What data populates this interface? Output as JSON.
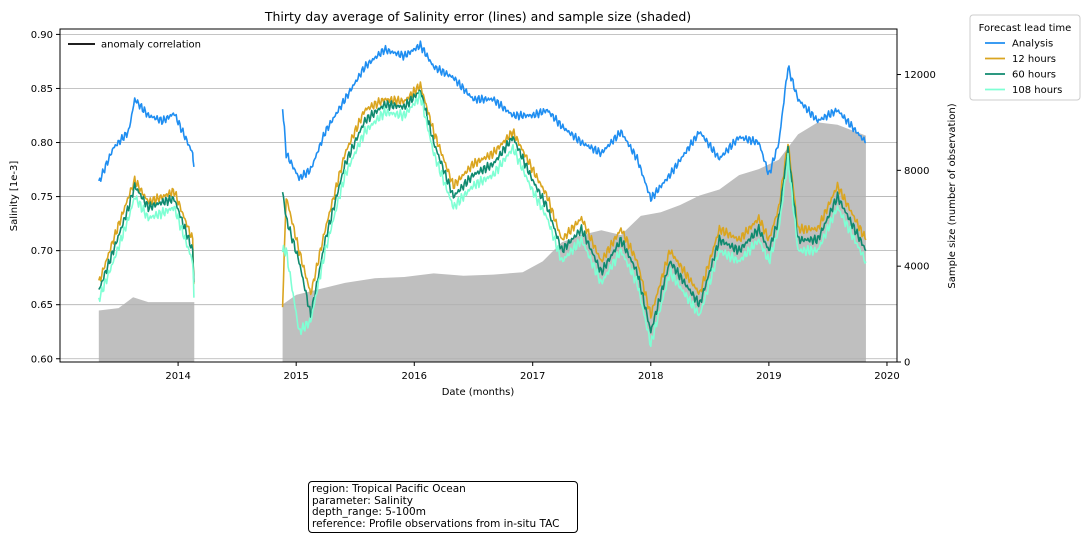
{
  "chart_data": {
    "type": "line",
    "title": "Thirty day average of Salinity error (lines) and sample size (shaded)",
    "xlabel": "Date (months)",
    "ylabel": "Salinity [1e-3]",
    "ylabel_right": "Sample size (number of observation)",
    "xlim": [
      "2013-01-01",
      "2020-02-01"
    ],
    "ylim": [
      0.597,
      0.905
    ],
    "ylim_right": [
      0,
      13900
    ],
    "x_ticks": [
      "2014",
      "2015",
      "2016",
      "2017",
      "2018",
      "2019",
      "2020"
    ],
    "y_ticks": [
      "0.60",
      "0.65",
      "0.70",
      "0.75",
      "0.80",
      "0.85",
      "0.90"
    ],
    "y_ticks_right": [
      "0",
      "4000",
      "8000",
      "12000"
    ],
    "grid": "horizontal",
    "legend_main": {
      "placement": "top-left",
      "entries": [
        "anomaly correlation"
      ]
    },
    "legend": {
      "title": "Forecast lead time",
      "placement": "outside-top-right",
      "entries": [
        "Analysis",
        "12 hours",
        "60 hours",
        "108 hours"
      ]
    },
    "sample_size": {
      "name": "sample size",
      "color": "#bfbfbf",
      "x": [
        "2013-05-01",
        "2013-07-01",
        "2013-08-15",
        "2013-10-01",
        "2013-12-01",
        "2014-02-20",
        "2014-11-20",
        "2015-01-01",
        "2015-03-01",
        "2015-06-01",
        "2015-09-01",
        "2015-12-01",
        "2016-03-01",
        "2016-06-01",
        "2016-09-01",
        "2016-12-01",
        "2017-02-01",
        "2017-04-01",
        "2017-06-01",
        "2017-08-01",
        "2017-10-01",
        "2017-12-01",
        "2018-02-01",
        "2018-04-01",
        "2018-06-01",
        "2018-08-01",
        "2018-10-01",
        "2018-12-01",
        "2019-02-01",
        "2019-04-01",
        "2019-06-01",
        "2019-08-01",
        "2019-10-28"
      ],
      "values": [
        2150,
        2250,
        2700,
        2500,
        2500,
        2500,
        2400,
        2800,
        3000,
        3300,
        3500,
        3550,
        3700,
        3600,
        3650,
        3750,
        4200,
        5000,
        5300,
        5500,
        5300,
        6100,
        6250,
        6550,
        6950,
        7200,
        7800,
        8050,
        8450,
        9500,
        10000,
        9900,
        9450
      ]
    },
    "series": [
      {
        "name": "Analysis",
        "color": "#1f8ef1",
        "x": [
          "2013-05-01",
          "2013-06-15",
          "2013-08-01",
          "2013-08-20",
          "2013-10-01",
          "2013-11-15",
          "2013-12-20",
          "2014-02-15",
          "2014-02-20",
          "2014-11-20",
          "2014-12-01",
          "2015-01-10",
          "2015-02-15",
          "2015-04-01",
          "2015-06-01",
          "2015-08-01",
          "2015-10-01",
          "2015-12-01",
          "2016-01-20",
          "2016-03-01",
          "2016-05-01",
          "2016-07-01",
          "2016-09-01",
          "2016-11-01",
          "2017-01-01",
          "2017-02-15",
          "2017-04-01",
          "2017-06-01",
          "2017-08-01",
          "2017-10-01",
          "2017-11-20",
          "2018-01-01",
          "2018-03-01",
          "2018-06-01",
          "2018-08-01",
          "2018-10-01",
          "2018-12-01",
          "2019-01-01",
          "2019-02-01",
          "2019-03-01",
          "2019-04-01",
          "2019-06-01",
          "2019-08-01",
          "2019-10-28"
        ],
        "values": [
          0.763,
          0.795,
          0.81,
          0.84,
          0.825,
          0.82,
          0.827,
          0.79,
          0.77,
          0.833,
          0.79,
          0.767,
          0.775,
          0.81,
          0.84,
          0.87,
          0.886,
          0.88,
          0.89,
          0.87,
          0.86,
          0.84,
          0.84,
          0.825,
          0.825,
          0.83,
          0.815,
          0.8,
          0.79,
          0.81,
          0.785,
          0.748,
          0.77,
          0.81,
          0.785,
          0.805,
          0.8,
          0.77,
          0.8,
          0.87,
          0.84,
          0.82,
          0.83,
          0.8
        ]
      },
      {
        "name": "12 hours",
        "color": "#daa520",
        "x": [
          "2013-05-01",
          "2013-06-15",
          "2013-08-01",
          "2013-08-20",
          "2013-10-01",
          "2013-11-15",
          "2013-12-20",
          "2014-02-15",
          "2014-02-20",
          "2014-11-20",
          "2014-12-01",
          "2015-01-10",
          "2015-02-15",
          "2015-04-01",
          "2015-06-01",
          "2015-08-01",
          "2015-10-01",
          "2015-12-01",
          "2016-01-20",
          "2016-03-01",
          "2016-05-01",
          "2016-07-01",
          "2016-09-01",
          "2016-11-01",
          "2017-01-01",
          "2017-02-15",
          "2017-04-01",
          "2017-06-01",
          "2017-08-01",
          "2017-10-01",
          "2017-11-20",
          "2018-01-01",
          "2018-03-01",
          "2018-06-01",
          "2018-08-01",
          "2018-10-01",
          "2018-12-01",
          "2019-01-01",
          "2019-02-01",
          "2019-03-01",
          "2019-04-01",
          "2019-06-01",
          "2019-08-01",
          "2019-10-28"
        ],
        "values": [
          0.67,
          0.71,
          0.75,
          0.765,
          0.745,
          0.75,
          0.755,
          0.71,
          0.65,
          0.65,
          0.75,
          0.7,
          0.66,
          0.72,
          0.79,
          0.83,
          0.84,
          0.838,
          0.853,
          0.81,
          0.76,
          0.78,
          0.79,
          0.81,
          0.775,
          0.75,
          0.71,
          0.73,
          0.69,
          0.72,
          0.69,
          0.64,
          0.7,
          0.66,
          0.72,
          0.71,
          0.73,
          0.71,
          0.74,
          0.8,
          0.72,
          0.72,
          0.76,
          0.71
        ]
      },
      {
        "name": "60 hours",
        "color": "#0f8a6f",
        "x": [
          "2013-05-01",
          "2013-06-15",
          "2013-08-01",
          "2013-08-20",
          "2013-10-01",
          "2013-11-15",
          "2013-12-20",
          "2014-02-15",
          "2014-02-20",
          "2014-11-20",
          "2014-12-01",
          "2015-01-10",
          "2015-02-15",
          "2015-04-01",
          "2015-06-01",
          "2015-08-01",
          "2015-10-01",
          "2015-12-01",
          "2016-01-20",
          "2016-03-01",
          "2016-05-01",
          "2016-07-01",
          "2016-09-01",
          "2016-11-01",
          "2017-01-01",
          "2017-02-15",
          "2017-04-01",
          "2017-06-01",
          "2017-08-01",
          "2017-10-01",
          "2017-11-20",
          "2018-01-01",
          "2018-03-01",
          "2018-06-01",
          "2018-08-01",
          "2018-10-01",
          "2018-12-01",
          "2019-01-01",
          "2019-02-01",
          "2019-03-01",
          "2019-04-01",
          "2019-06-01",
          "2019-08-01",
          "2019-10-28"
        ],
        "values": [
          0.663,
          0.7,
          0.74,
          0.76,
          0.74,
          0.745,
          0.748,
          0.7,
          0.66,
          0.755,
          0.73,
          0.69,
          0.64,
          0.71,
          0.78,
          0.82,
          0.835,
          0.833,
          0.848,
          0.8,
          0.75,
          0.77,
          0.78,
          0.805,
          0.765,
          0.74,
          0.7,
          0.72,
          0.68,
          0.71,
          0.68,
          0.625,
          0.69,
          0.65,
          0.71,
          0.7,
          0.72,
          0.7,
          0.73,
          0.795,
          0.71,
          0.71,
          0.75,
          0.7
        ]
      },
      {
        "name": "108 hours",
        "color": "#7fffd4",
        "x": [
          "2013-05-01",
          "2013-06-15",
          "2013-08-01",
          "2013-08-20",
          "2013-10-01",
          "2013-11-15",
          "2013-12-20",
          "2014-02-15",
          "2014-02-20",
          "2014-11-20",
          "2014-12-01",
          "2015-01-10",
          "2015-02-15",
          "2015-04-01",
          "2015-06-01",
          "2015-08-01",
          "2015-10-01",
          "2015-12-01",
          "2016-01-20",
          "2016-03-01",
          "2016-05-01",
          "2016-07-01",
          "2016-09-01",
          "2016-11-01",
          "2017-01-01",
          "2017-02-15",
          "2017-04-01",
          "2017-06-01",
          "2017-08-01",
          "2017-10-01",
          "2017-11-20",
          "2018-01-01",
          "2018-03-01",
          "2018-06-01",
          "2018-08-01",
          "2018-10-01",
          "2018-12-01",
          "2019-01-01",
          "2019-02-01",
          "2019-03-01",
          "2019-04-01",
          "2019-06-01",
          "2019-08-01",
          "2019-10-28"
        ],
        "values": [
          0.655,
          0.69,
          0.73,
          0.75,
          0.73,
          0.735,
          0.74,
          0.69,
          0.65,
          0.7,
          0.7,
          0.625,
          0.635,
          0.7,
          0.77,
          0.81,
          0.828,
          0.825,
          0.843,
          0.79,
          0.74,
          0.76,
          0.77,
          0.795,
          0.755,
          0.73,
          0.69,
          0.71,
          0.67,
          0.7,
          0.67,
          0.613,
          0.68,
          0.64,
          0.7,
          0.69,
          0.71,
          0.69,
          0.72,
          0.785,
          0.7,
          0.7,
          0.74,
          0.69
        ]
      }
    ]
  },
  "info_box": {
    "region": "region: Tropical Pacific Ocean",
    "parameter": "parameter: Salinity",
    "depth_range": "depth_range: 5-100m",
    "reference": "reference: Profile observations from in-situ TAC"
  }
}
